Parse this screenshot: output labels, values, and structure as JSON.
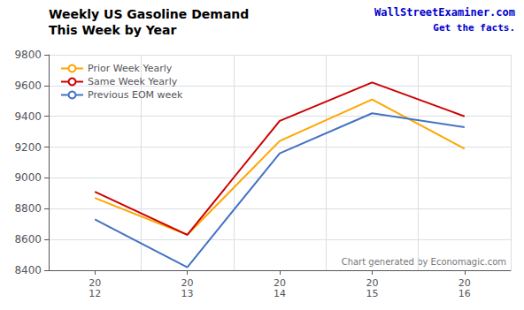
{
  "chart_data": {
    "type": "line",
    "title": "Weekly US Gasoline Demand",
    "subtitle": "This Week by Year",
    "categories": [
      "20\n12",
      "20\n13",
      "20\n14",
      "20\n15",
      "20\n16"
    ],
    "series": [
      {
        "name": "Prior Week Yearly",
        "color": "#FFA500",
        "values": [
          8870,
          8630,
          9240,
          9510,
          9190
        ]
      },
      {
        "name": "Same Week Yearly",
        "color": "#CC0000",
        "values": [
          8910,
          8630,
          9370,
          9620,
          9400
        ]
      },
      {
        "name": "Previous EOM week",
        "color": "#4472C4",
        "values": [
          8730,
          8420,
          9160,
          9420,
          9330
        ]
      }
    ],
    "ylim": [
      8400,
      9800
    ],
    "yticks": [
      8400,
      8600,
      8800,
      9000,
      9200,
      9400,
      9600,
      9800
    ],
    "grid": true,
    "legend": "upper left",
    "annotations": [
      {
        "text": "WallStreetExaminer.com",
        "color": "#0000CC"
      },
      {
        "text": "Get the facts.",
        "color": "#0000CC"
      },
      {
        "text": "Chart generated by Economagic.com",
        "color": "#777777"
      }
    ]
  }
}
